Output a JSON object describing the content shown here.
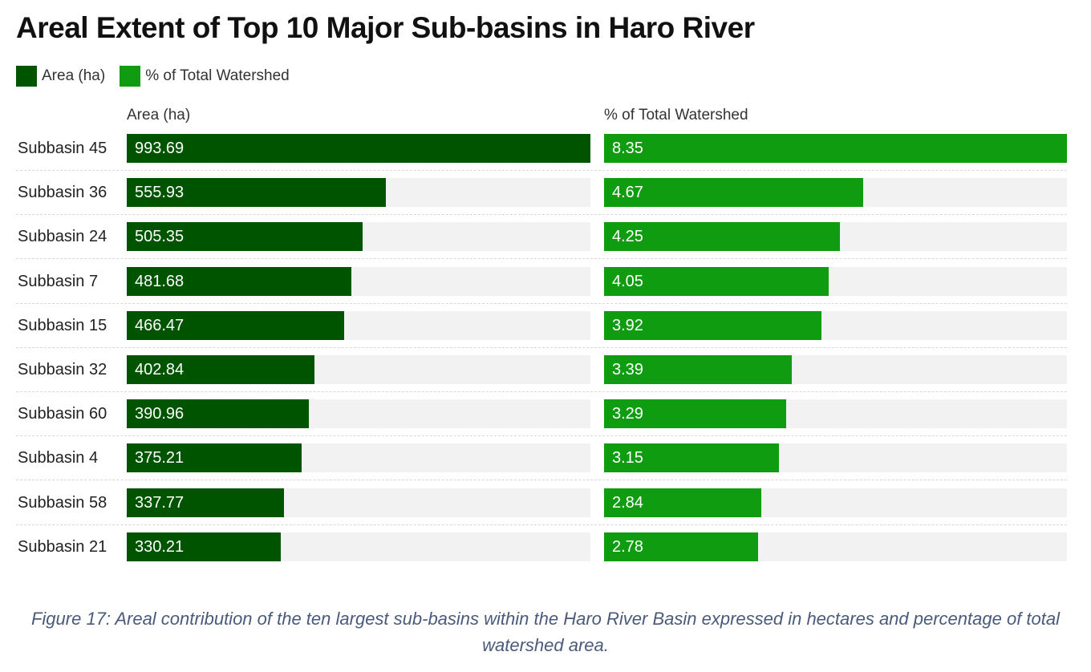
{
  "title": "Areal Extent of Top 10 Major Sub-basins in Haro River",
  "legend": {
    "area_label": "Area (ha)",
    "pct_label": "% of Total Watershed"
  },
  "colors": {
    "area": "#005400",
    "pct": "#109c10",
    "track": "#f2f2f2"
  },
  "chart_data": {
    "type": "bar",
    "title": "Areal Extent of Top 10 Major Sub-basins in Haro River",
    "categories": [
      "Subbasin 45",
      "Subbasin 36",
      "Subbasin 24",
      "Subbasin 7",
      "Subbasin 15",
      "Subbasin 32",
      "Subbasin 60",
      "Subbasin 4",
      "Subbasin 58",
      "Subbasin 21"
    ],
    "series": [
      {
        "name": "Area (ha)",
        "values": [
          993.69,
          555.93,
          505.35,
          481.68,
          466.47,
          402.84,
          390.96,
          375.21,
          337.77,
          330.21
        ],
        "labels": [
          "993.69",
          "555.93",
          "505.35",
          "481.68",
          "466.47",
          "402.84",
          "390.96",
          "375.21",
          "337.77",
          "330.21"
        ]
      },
      {
        "name": "% of Total Watershed",
        "values": [
          8.35,
          4.67,
          4.25,
          4.05,
          3.92,
          3.39,
          3.29,
          3.15,
          2.84,
          2.78
        ],
        "labels": [
          "8.35",
          "4.67",
          "4.25",
          "4.05",
          "3.92",
          "3.39",
          "3.29",
          "3.15",
          "2.84",
          "2.78"
        ]
      }
    ],
    "orientation": "horizontal",
    "legend_position": "top-left"
  },
  "caption": "Figure 17: Areal contribution of the ten largest sub-basins within the Haro River Basin expressed in hectares and percentage of total watershed area."
}
